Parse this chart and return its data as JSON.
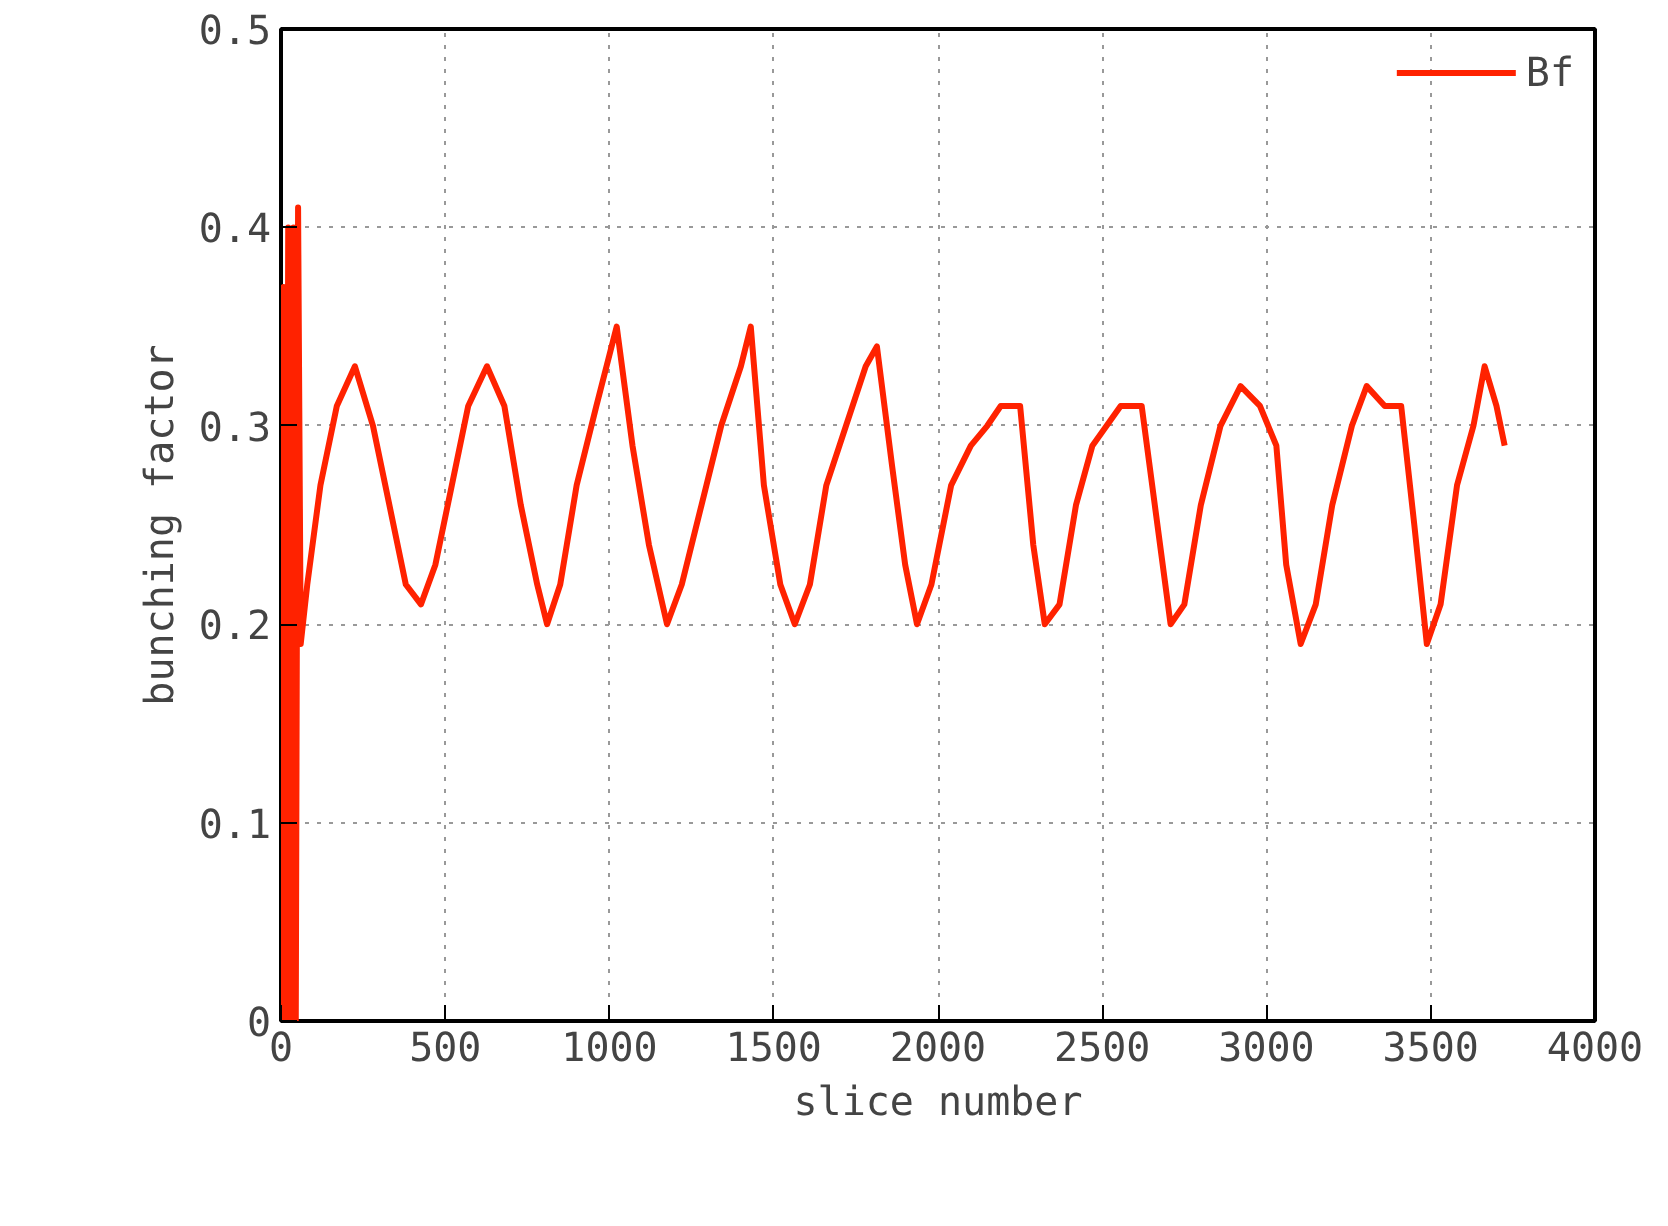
{
  "chart_data": {
    "type": "line",
    "xlabel": "slice number",
    "ylabel": "bunching factor",
    "xlim": [
      0,
      4000
    ],
    "xticks": [
      0,
      500,
      1000,
      1500,
      2000,
      2500,
      3000,
      3500,
      4000
    ],
    "ylim": [
      0,
      0.5
    ],
    "yticks": [
      0,
      0.1,
      0.2,
      0.3,
      0.4,
      0.5
    ],
    "grid": true,
    "legend": "top right",
    "line_style": "solid",
    "series": [
      {
        "name": "Bf",
        "color": "#ff2200",
        "x": [
          0,
          8,
          15,
          22,
          30,
          38,
          45,
          52,
          60,
          80,
          120,
          170,
          225,
          280,
          330,
          380,
          426,
          470,
          520,
          570,
          627,
          680,
          730,
          780,
          810,
          850,
          900,
          960,
          1022,
          1070,
          1120,
          1175,
          1220,
          1280,
          1340,
          1400,
          1430,
          1470,
          1520,
          1564,
          1610,
          1660,
          1720,
          1780,
          1814,
          1860,
          1900,
          1936,
          1980,
          2040,
          2100,
          2150,
          2191,
          2250,
          2290,
          2325,
          2370,
          2420,
          2470,
          2556,
          2620,
          2660,
          2708,
          2750,
          2800,
          2860,
          2921,
          2980,
          3030,
          3060,
          3104,
          3150,
          3200,
          3260,
          3305,
          3360,
          3410,
          3450,
          3488,
          3530,
          3580,
          3630,
          3664,
          3700,
          3725
        ],
        "values": [
          0,
          0.37,
          0,
          0.4,
          0,
          0.4,
          0,
          0.41,
          0.19,
          0.22,
          0.27,
          0.31,
          0.33,
          0.3,
          0.26,
          0.22,
          0.21,
          0.23,
          0.27,
          0.31,
          0.33,
          0.31,
          0.26,
          0.22,
          0.2,
          0.22,
          0.27,
          0.31,
          0.35,
          0.29,
          0.24,
          0.2,
          0.22,
          0.26,
          0.3,
          0.33,
          0.35,
          0.27,
          0.22,
          0.2,
          0.22,
          0.27,
          0.3,
          0.33,
          0.34,
          0.28,
          0.23,
          0.2,
          0.22,
          0.27,
          0.29,
          0.3,
          0.31,
          0.31,
          0.24,
          0.2,
          0.21,
          0.26,
          0.29,
          0.31,
          0.31,
          0.26,
          0.2,
          0.21,
          0.26,
          0.3,
          0.32,
          0.31,
          0.29,
          0.23,
          0.19,
          0.21,
          0.26,
          0.3,
          0.32,
          0.31,
          0.31,
          0.25,
          0.19,
          0.21,
          0.27,
          0.3,
          0.33,
          0.31,
          0.29
        ]
      }
    ]
  }
}
